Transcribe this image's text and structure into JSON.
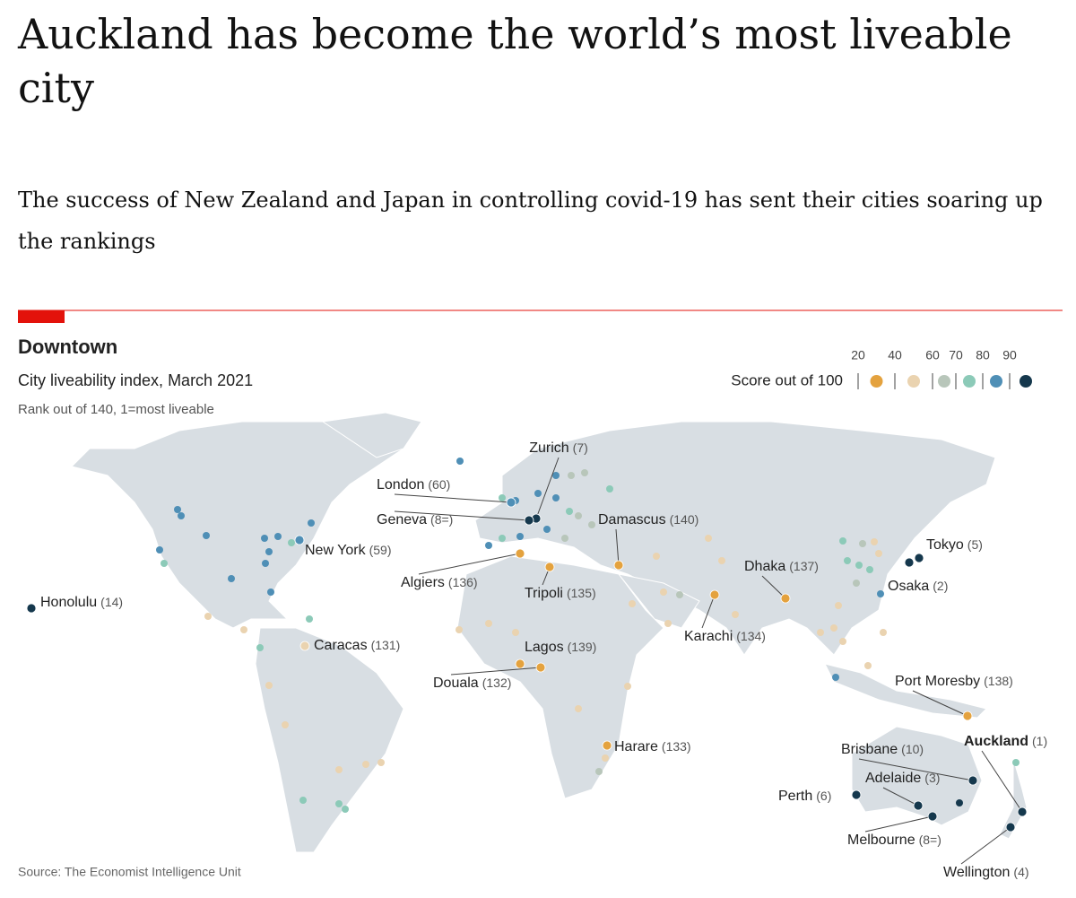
{
  "header": {
    "title": "Auckland has become the world’s most liveable city",
    "subtitle": "The success of New Zealand and Japan in controlling covid-19 has sent their cities soaring up the rankings"
  },
  "chart": {
    "title": "Downtown",
    "subtitle": "City liveability index, March 2021",
    "note": "Rank out of 140, 1=most liveable",
    "source": "Source: The Economist Intelligence Unit",
    "legend": {
      "title": "Score out of 100",
      "ticks": [
        20,
        40,
        60,
        70,
        80,
        90
      ],
      "colors": [
        "#e4a23e",
        "#ead3b0",
        "#b8c6ba",
        "#8ccab8",
        "#4f8fb6",
        "#15384d"
      ]
    },
    "cities": [
      {
        "name": "Zurich",
        "rank": "(7)",
        "color": "#15384d"
      },
      {
        "name": "London",
        "rank": "(60)",
        "color": "#4f8fb6"
      },
      {
        "name": "Geneva",
        "rank": "(8=)",
        "color": "#15384d"
      },
      {
        "name": "Damascus",
        "rank": "(140)",
        "color": "#e4a23e"
      },
      {
        "name": "New York",
        "rank": "(59)",
        "color": "#4f8fb6"
      },
      {
        "name": "Algiers",
        "rank": "(136)",
        "color": "#e4a23e"
      },
      {
        "name": "Tripoli",
        "rank": "(135)",
        "color": "#e4a23e"
      },
      {
        "name": "Dhaka",
        "rank": "(137)",
        "color": "#e4a23e"
      },
      {
        "name": "Tokyo",
        "rank": "(5)",
        "color": "#15384d"
      },
      {
        "name": "Osaka",
        "rank": "(2)",
        "color": "#15384d"
      },
      {
        "name": "Honolulu",
        "rank": "(14)",
        "color": "#15384d"
      },
      {
        "name": "Caracas",
        "rank": "(131)",
        "color": "#ead3b0"
      },
      {
        "name": "Karachi",
        "rank": "(134)",
        "color": "#e4a23e"
      },
      {
        "name": "Lagos",
        "rank": "(139)",
        "color": "#e4a23e"
      },
      {
        "name": "Douala",
        "rank": "(132)",
        "color": "#e4a23e"
      },
      {
        "name": "Port Moresby",
        "rank": "(138)",
        "color": "#e4a23e"
      },
      {
        "name": "Harare",
        "rank": "(133)",
        "color": "#e4a23e"
      },
      {
        "name": "Brisbane",
        "rank": "(10)",
        "color": "#15384d"
      },
      {
        "name": "Auckland",
        "rank": "(1)",
        "color": "#15384d"
      },
      {
        "name": "Adelaide",
        "rank": "(3)",
        "color": "#15384d"
      },
      {
        "name": "Perth",
        "rank": "(6)",
        "color": "#15384d"
      },
      {
        "name": "Melbourne",
        "rank": "(8=)",
        "color": "#15384d"
      },
      {
        "name": "Wellington",
        "rank": "(4)",
        "color": "#15384d"
      }
    ]
  }
}
